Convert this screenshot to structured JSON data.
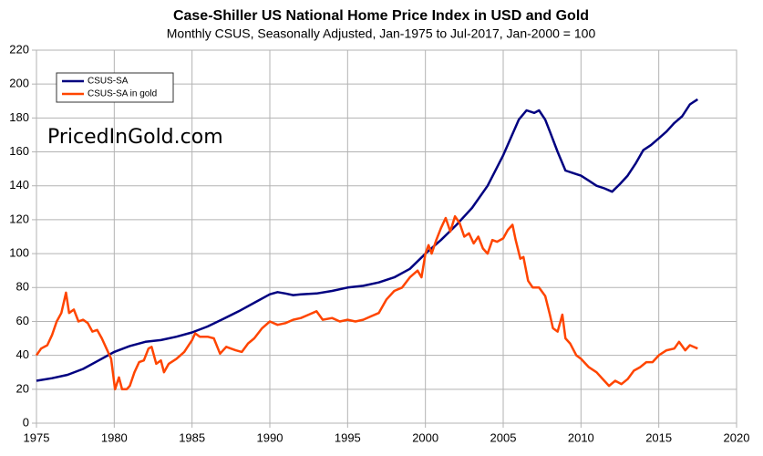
{
  "chart_data": {
    "type": "line",
    "title": "Case-Shiller US National Home Price Index in USD and Gold",
    "subtitle": "Monthly CSUS, Seasonally Adjusted, Jan-1975 to Jul-2017, Jan-2000 = 100",
    "watermark": "PricedInGold.com",
    "xlim": [
      1975,
      2020
    ],
    "xticks": [
      1975,
      1980,
      1985,
      1990,
      1995,
      2000,
      2005,
      2010,
      2015,
      2020
    ],
    "ylim": [
      0,
      220
    ],
    "yticks": [
      0,
      20,
      40,
      60,
      80,
      100,
      120,
      140,
      160,
      180,
      200,
      220
    ],
    "grid": true,
    "legend": "top-left",
    "series": [
      {
        "name": "CSUS-SA",
        "color": "#000080",
        "x": [
          1975,
          1976,
          1977,
          1978,
          1979,
          1980,
          1981,
          1982,
          1983,
          1984,
          1985,
          1986,
          1987,
          1988,
          1989,
          1990,
          1990.5,
          1991,
          1991.5,
          1992,
          1993,
          1994,
          1995,
          1996,
          1997,
          1998,
          1999,
          2000,
          2001,
          2002,
          2003,
          2004,
          2005,
          2006,
          2006.5,
          2007,
          2007.3,
          2007.7,
          2008,
          2008.5,
          2009,
          2009.5,
          2010,
          2010.5,
          2011,
          2011.5,
          2012,
          2012.5,
          2013,
          2013.5,
          2014,
          2014.5,
          2015,
          2015.5,
          2016,
          2016.5,
          2017,
          2017.5
        ],
        "values": [
          25,
          26.5,
          28.5,
          32,
          37,
          42,
          45.5,
          48,
          49,
          51,
          53.5,
          57,
          61.5,
          66,
          71,
          76,
          77.3,
          76.5,
          75.5,
          76,
          76.5,
          78,
          80,
          81,
          83,
          86,
          91,
          100,
          108,
          117,
          127,
          140,
          158,
          179,
          184.5,
          183,
          184.5,
          179,
          172,
          160,
          149,
          147.5,
          146,
          143,
          140,
          138.5,
          136.5,
          141,
          146,
          153,
          161,
          164,
          168,
          172,
          177,
          181,
          188,
          191
        ]
      },
      {
        "name": "CSUS-SA in gold",
        "color": "#ff4500",
        "x": [
          1975,
          1975.3,
          1975.7,
          1976,
          1976.3,
          1976.6,
          1976.9,
          1977.1,
          1977.4,
          1977.7,
          1978,
          1978.3,
          1978.6,
          1978.9,
          1979.2,
          1979.5,
          1979.8,
          1980.05,
          1980.3,
          1980.5,
          1980.8,
          1981,
          1981.3,
          1981.6,
          1981.9,
          1982.2,
          1982.4,
          1982.7,
          1983,
          1983.2,
          1983.5,
          1984,
          1984.5,
          1985,
          1985.2,
          1985.5,
          1986,
          1986.4,
          1986.8,
          1987.2,
          1987.8,
          1988.2,
          1988.6,
          1989,
          1989.5,
          1990,
          1990.5,
          1991,
          1991.5,
          1992,
          1992.5,
          1993,
          1993.4,
          1994,
          1994.5,
          1995,
          1995.5,
          1996,
          1996.5,
          1997,
          1997.5,
          1998,
          1998.5,
          1999,
          1999.5,
          1999.75,
          2000,
          2000.2,
          2000.4,
          2000.7,
          2001,
          2001.3,
          2001.6,
          2001.9,
          2002.2,
          2002.5,
          2002.8,
          2003.1,
          2003.4,
          2003.7,
          2004,
          2004.3,
          2004.6,
          2005,
          2005.3,
          2005.6,
          2005.8,
          2006.1,
          2006.3,
          2006.6,
          2006.9,
          2007.3,
          2007.7,
          2008,
          2008.2,
          2008.5,
          2008.8,
          2009,
          2009.3,
          2009.7,
          2010,
          2010.5,
          2011,
          2011.5,
          2011.8,
          2012.2,
          2012.6,
          2013,
          2013.4,
          2013.8,
          2014.2,
          2014.6,
          2015,
          2015.5,
          2016,
          2016.3,
          2016.7,
          2017,
          2017.5
        ],
        "values": [
          40,
          44,
          46,
          52,
          60,
          65,
          77,
          65,
          67,
          60,
          61,
          59,
          54,
          55,
          50,
          44,
          38,
          20,
          27,
          20,
          20,
          22,
          30,
          36,
          37,
          44,
          45,
          35,
          37,
          30,
          35,
          38,
          42,
          49,
          53,
          51,
          51,
          50,
          41,
          45,
          43,
          42,
          47,
          50,
          56,
          60,
          58,
          59,
          61,
          62,
          64,
          66,
          61,
          62,
          60,
          61,
          60,
          61,
          63,
          65,
          73,
          78,
          80,
          86,
          90,
          86,
          100,
          105,
          100,
          108,
          115,
          121,
          113,
          122,
          118,
          110,
          112,
          106,
          110,
          103,
          100,
          108,
          107,
          109,
          114,
          117,
          108,
          97,
          98,
          84,
          80,
          80,
          75,
          64,
          56,
          54,
          64,
          50,
          47,
          40,
          38,
          33,
          30,
          25,
          22,
          25,
          23,
          26,
          31,
          33,
          36,
          36,
          40,
          43,
          44,
          48,
          43,
          46,
          44
        ]
      }
    ]
  }
}
